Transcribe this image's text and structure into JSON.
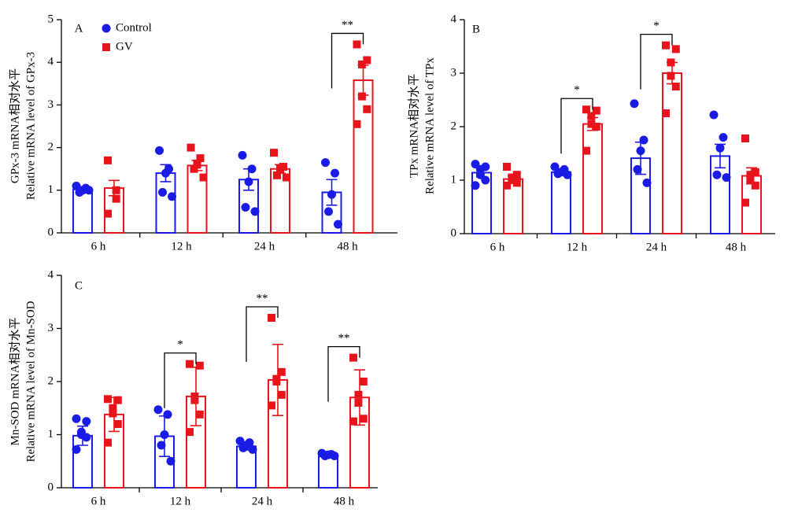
{
  "chart_data": [
    {
      "type": "bar",
      "label": "A",
      "ylabel": [
        "GPx-3 mRNA相对水平",
        "Relative mRNA level of GPx-3"
      ],
      "categories": [
        "6 h",
        "12 h",
        "24 h",
        "48 h"
      ],
      "ylim": [
        0,
        5
      ],
      "yticks": [
        0,
        1,
        2,
        3,
        4,
        5
      ],
      "legend": true,
      "series": [
        {
          "name": "Control",
          "color": "#1b1be6",
          "marker": "circle",
          "values": [
            1.02,
            1.4,
            1.25,
            0.95
          ],
          "errors": [
            0.05,
            0.2,
            0.25,
            0.3
          ],
          "points": [
            [
              1.1,
              1.05,
              1.0,
              0.95,
              1.0
            ],
            [
              1.93,
              1.5,
              1.4,
              0.95,
              0.85
            ],
            [
              1.82,
              1.5,
              1.2,
              0.6,
              0.5
            ],
            [
              1.65,
              1.4,
              0.9,
              0.5,
              0.2
            ]
          ]
        },
        {
          "name": "GV",
          "color": "#e8141b",
          "marker": "square",
          "values": [
            1.05,
            1.58,
            1.5,
            3.58
          ],
          "errors": [
            0.18,
            0.12,
            0.1,
            0.35
          ],
          "points": [
            [
              1.7,
              1.0,
              0.8,
              0.45
            ],
            [
              2.0,
              1.75,
              1.6,
              1.5,
              1.3
            ],
            [
              1.88,
              1.55,
              1.5,
              1.35,
              1.3
            ],
            [
              4.42,
              4.05,
              3.95,
              3.2,
              2.9,
              2.55
            ]
          ]
        }
      ],
      "annotations": [
        {
          "category": "48 h",
          "label": "**"
        }
      ]
    },
    {
      "type": "bar",
      "label": "B",
      "ylabel": [
        "TPx mRNA相对水平",
        "Relative mRNA level of TPx"
      ],
      "categories": [
        "6 h",
        "12 h",
        "24 h",
        "48 h"
      ],
      "ylim": [
        0,
        4
      ],
      "yticks": [
        0,
        1,
        2,
        3,
        4
      ],
      "legend": false,
      "series": [
        {
          "name": "Control",
          "color": "#1b1be6",
          "marker": "circle",
          "values": [
            1.14,
            1.15,
            1.41,
            1.45
          ],
          "errors": [
            0.08,
            0.03,
            0.3,
            0.22
          ],
          "points": [
            [
              1.3,
              1.25,
              1.2,
              1.1,
              1.0,
              0.9
            ],
            [
              1.25,
              1.2,
              1.15,
              1.12,
              1.1
            ],
            [
              2.43,
              1.75,
              1.55,
              1.2,
              0.95
            ],
            [
              2.22,
              1.8,
              1.6,
              1.1,
              1.05
            ]
          ]
        },
        {
          "name": "GV",
          "color": "#e8141b",
          "marker": "square",
          "values": [
            1.02,
            2.05,
            3.0,
            1.08
          ],
          "errors": [
            0.06,
            0.12,
            0.2,
            0.15
          ],
          "points": [
            [
              1.25,
              1.1,
              1.05,
              1.0,
              0.95,
              0.9
            ],
            [
              2.32,
              2.3,
              2.2,
              2.05,
              2.0,
              1.55
            ],
            [
              3.52,
              3.45,
              3.2,
              2.95,
              2.75,
              2.25
            ],
            [
              1.78,
              1.15,
              1.1,
              1.0,
              0.9,
              0.58
            ]
          ]
        }
      ],
      "annotations": [
        {
          "category": "12 h",
          "label": "*"
        },
        {
          "category": "24 h",
          "label": "*"
        }
      ]
    },
    {
      "type": "bar",
      "label": "C",
      "ylabel": [
        "Mn-SOD mRNA相对水平",
        "Relative mRNA level of Mn-SOD"
      ],
      "categories": [
        "6 h",
        "12 h",
        "24 h",
        "48 h"
      ],
      "ylim": [
        0,
        4
      ],
      "yticks": [
        0,
        1,
        2,
        3,
        4
      ],
      "legend": false,
      "series": [
        {
          "name": "Control",
          "color": "#1b1be6",
          "marker": "circle",
          "values": [
            0.98,
            0.97,
            0.78,
            0.62
          ],
          "errors": [
            0.18,
            0.38,
            0.07,
            0.03
          ],
          "points": [
            [
              1.3,
              1.25,
              1.05,
              1.0,
              0.95,
              0.72
            ],
            [
              1.47,
              1.38,
              1.0,
              0.8,
              0.5
            ],
            [
              0.88,
              0.85,
              0.8,
              0.75,
              0.72
            ],
            [
              0.65,
              0.63,
              0.62,
              0.6,
              0.6
            ]
          ]
        },
        {
          "name": "GV",
          "color": "#e8141b",
          "marker": "square",
          "values": [
            1.38,
            1.72,
            2.03,
            1.7
          ],
          "errors": [
            0.32,
            0.55,
            0.67,
            0.52
          ],
          "points": [
            [
              1.67,
              1.65,
              1.5,
              1.4,
              1.2,
              0.85
            ],
            [
              2.33,
              2.3,
              1.72,
              1.65,
              1.38,
              1.05
            ],
            [
              3.2,
              2.18,
              2.05,
              2.0,
              1.75,
              1.55
            ],
            [
              2.45,
              2.0,
              1.75,
              1.6,
              1.3,
              1.25
            ]
          ]
        }
      ],
      "annotations": [
        {
          "category": "12 h",
          "label": "*"
        },
        {
          "category": "24 h",
          "label": "**"
        },
        {
          "category": "48 h",
          "label": "**"
        }
      ]
    }
  ]
}
